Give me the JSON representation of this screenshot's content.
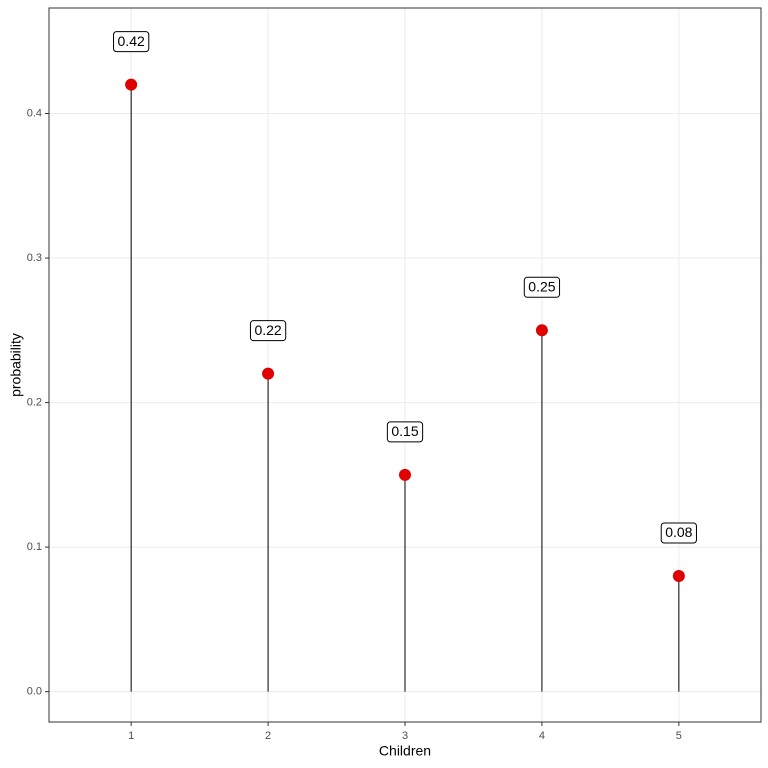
{
  "chart_data": {
    "type": "lollipop",
    "x": [
      1,
      2,
      3,
      4,
      5
    ],
    "values": [
      0.42,
      0.22,
      0.15,
      0.25,
      0.08
    ],
    "color": "#e00000",
    "xlabel": "Children",
    "ylabel": "probability",
    "xlim": [
      0.4,
      5.6
    ],
    "ylim": [
      -0.021,
      0.473
    ],
    "xticks": [
      1,
      2,
      3,
      4,
      5
    ],
    "yticks": [
      {
        "value": 0,
        "label": "0.0"
      },
      0.1,
      0.2,
      0.3,
      0.4
    ],
    "grid": true
  }
}
